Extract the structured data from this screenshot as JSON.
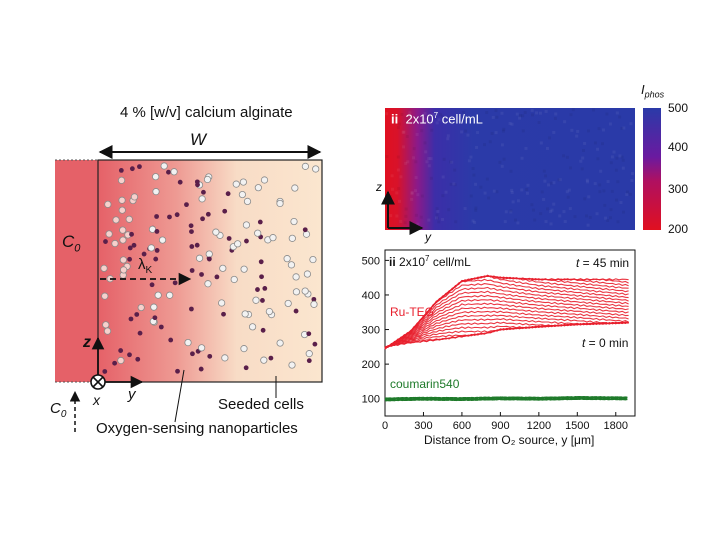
{
  "schematic": {
    "title": "4 % [w/v] calcium alginate",
    "width_label": "W",
    "c0_label": "C",
    "c0_sub": "0",
    "c0_bottom_label": "C",
    "c0_bottom_sub": "0",
    "lambda_label": "λ",
    "lambda_sub": "K",
    "axis_z": "z",
    "axis_x": "x",
    "axis_y": "y",
    "seeded_cells": "Seeded cells",
    "nanoparticles": "Oxygen-sensing nanoparticles"
  },
  "heatmap": {
    "panel_label": "ii",
    "cell_text": "2x10",
    "cell_exp": "7",
    "cell_unit": " cell/mL",
    "axis_z": "z",
    "axis_y": "y",
    "colorbar_label": "I",
    "colorbar_sub": "phos",
    "colorbar_ticks": [
      "500",
      "400",
      "300",
      "200"
    ],
    "colors": {
      "low": "#e01020",
      "mid": "#6a1aa0",
      "high": "#2a3aa8"
    }
  },
  "chart_data": {
    "type": "line",
    "panel_label": "ii",
    "subtitle": "2x10^7 cell/mL",
    "subtitle_main": "2x10",
    "subtitle_exp": "7",
    "subtitle_unit": " cell/mL",
    "xlabel": "Distance from O₂ source, y [μm]",
    "xlim": [
      0,
      1950
    ],
    "ylim": [
      50,
      530
    ],
    "xticks": [
      0,
      300,
      600,
      900,
      1200,
      1500,
      1800
    ],
    "yticks": [
      100,
      200,
      300,
      400,
      500
    ],
    "annotations": {
      "t_end_var": "t",
      "t_end_val": " = 45 min",
      "t_start_var": "t",
      "t_start_val": " = 0 min"
    },
    "series": [
      {
        "name": "Ru-TEG",
        "color": "#e8202e",
        "x": [
          0,
          200,
          400,
          600,
          800,
          900,
          1200,
          1500,
          1900
        ],
        "y_final": [
          245,
          295,
          380,
          440,
          455,
          450,
          445,
          445,
          445
        ],
        "y_initial": [
          250,
          262,
          270,
          280,
          290,
          300,
          308,
          315,
          320
        ]
      },
      {
        "name": "coumarin540",
        "color": "#1e7a2a",
        "x": [
          0,
          300,
          600,
          900,
          1200,
          1500,
          1900
        ],
        "y": [
          98,
          100,
          99,
          101,
          100,
          102,
          101
        ]
      }
    ]
  }
}
